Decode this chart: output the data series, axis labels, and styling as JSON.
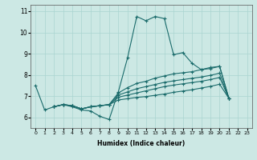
{
  "xlabel": "Humidex (Indice chaleur)",
  "bg_color": "#cce8e4",
  "grid_color": "#aad4d0",
  "line_color": "#1a6b6b",
  "xlim": [
    -0.5,
    23.5
  ],
  "ylim": [
    5.5,
    11.3
  ],
  "yticks": [
    6,
    7,
    8,
    9,
    10,
    11
  ],
  "xticks": [
    0,
    1,
    2,
    3,
    4,
    5,
    6,
    7,
    8,
    9,
    10,
    11,
    12,
    13,
    14,
    15,
    16,
    17,
    18,
    19,
    20,
    21,
    22,
    23
  ],
  "lines": [
    {
      "x": [
        0,
        1,
        2,
        3,
        4,
        5,
        6,
        7,
        8,
        9,
        10,
        11,
        12,
        13,
        14,
        15,
        16,
        17,
        18,
        19,
        20,
        21
      ],
      "y": [
        7.5,
        6.35,
        6.5,
        6.6,
        6.5,
        6.35,
        6.3,
        6.05,
        5.9,
        7.2,
        8.8,
        10.75,
        10.55,
        10.75,
        10.65,
        8.95,
        9.05,
        8.55,
        8.25,
        8.35,
        8.4,
        6.9
      ]
    },
    {
      "x": [
        2,
        3,
        4,
        5,
        6,
        7,
        8,
        9,
        10,
        11,
        12,
        13,
        14,
        15,
        16,
        17,
        18,
        19,
        20,
        21
      ],
      "y": [
        6.5,
        6.6,
        6.55,
        6.4,
        6.5,
        6.55,
        6.6,
        7.15,
        7.4,
        7.6,
        7.7,
        7.85,
        7.95,
        8.05,
        8.1,
        8.15,
        8.25,
        8.3,
        8.4,
        6.9
      ]
    },
    {
      "x": [
        2,
        3,
        4,
        5,
        6,
        7,
        8,
        9,
        10,
        11,
        12,
        13,
        14,
        15,
        16,
        17,
        18,
        19,
        20,
        21
      ],
      "y": [
        6.5,
        6.6,
        6.55,
        6.4,
        6.5,
        6.55,
        6.6,
        7.05,
        7.2,
        7.35,
        7.45,
        7.55,
        7.65,
        7.72,
        7.78,
        7.84,
        7.9,
        7.98,
        8.08,
        6.9
      ]
    },
    {
      "x": [
        2,
        3,
        4,
        5,
        6,
        7,
        8,
        9,
        10,
        11,
        12,
        13,
        14,
        15,
        16,
        17,
        18,
        19,
        20,
        21
      ],
      "y": [
        6.5,
        6.6,
        6.55,
        6.4,
        6.5,
        6.55,
        6.6,
        6.95,
        7.05,
        7.15,
        7.25,
        7.35,
        7.45,
        7.52,
        7.58,
        7.64,
        7.7,
        7.78,
        7.88,
        6.9
      ]
    },
    {
      "x": [
        2,
        3,
        4,
        5,
        6,
        7,
        8,
        9,
        10,
        11,
        12,
        13,
        14,
        15,
        16,
        17,
        18,
        19,
        20,
        21
      ],
      "y": [
        6.5,
        6.6,
        6.55,
        6.4,
        6.5,
        6.55,
        6.6,
        6.82,
        6.88,
        6.94,
        6.98,
        7.04,
        7.1,
        7.18,
        7.24,
        7.3,
        7.38,
        7.46,
        7.56,
        6.9
      ]
    }
  ]
}
